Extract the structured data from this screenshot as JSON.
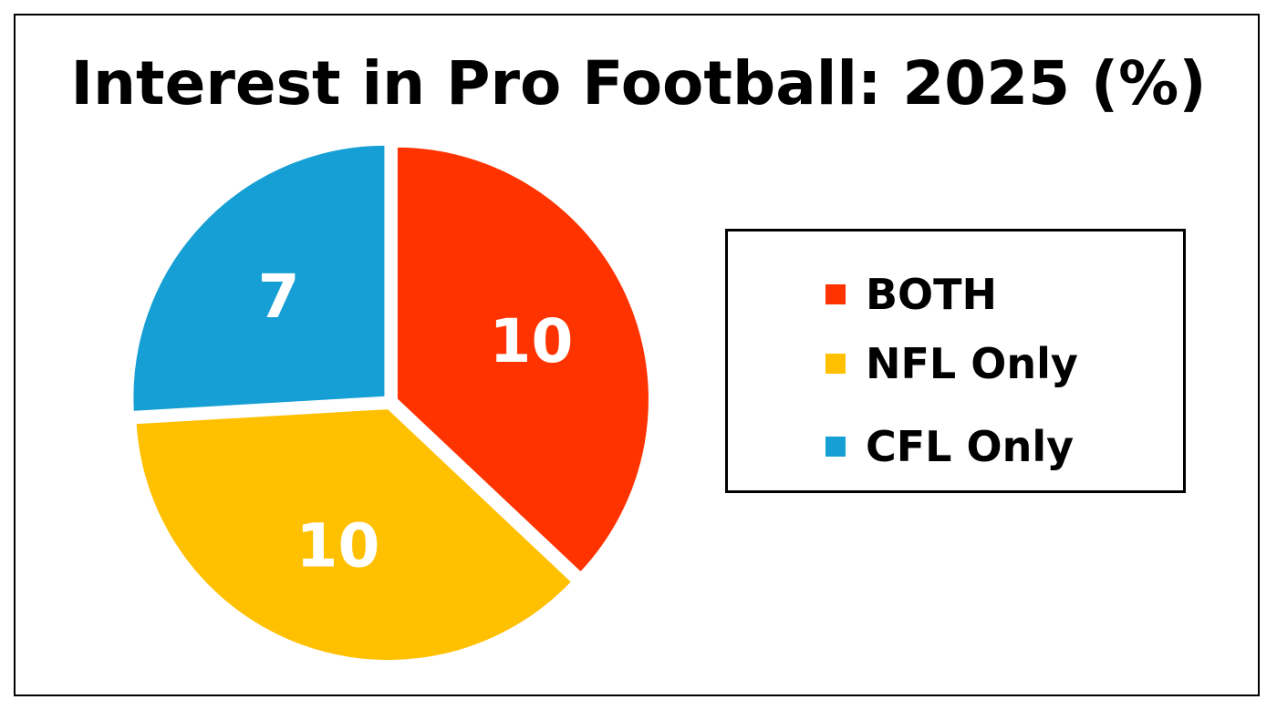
{
  "chart_data": {
    "type": "pie",
    "title": "Interest in Pro Football: 2025 (%)",
    "slices": [
      {
        "label": "BOTH",
        "value": 10,
        "display": "10",
        "color": "#FF3300"
      },
      {
        "label": "NFL Only",
        "value": 10,
        "display": "10",
        "color": "#FFC000"
      },
      {
        "label": "CFL Only",
        "value": 7,
        "display": "7",
        "color": "#169FD4"
      }
    ],
    "legend": {
      "placement": "right",
      "entries": [
        "BOTH",
        "NFL Only",
        "CFL Only"
      ]
    },
    "start_direction": "top",
    "rotation": "clockwise",
    "exploded": true
  }
}
